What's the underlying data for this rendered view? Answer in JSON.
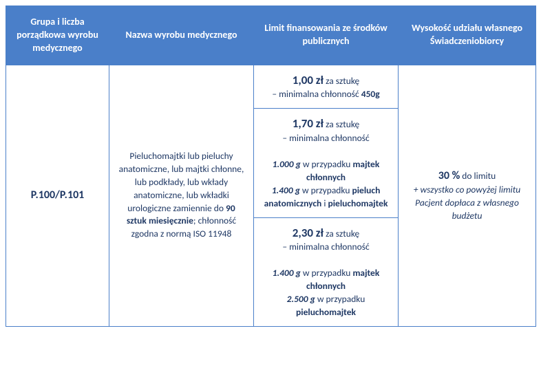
{
  "header": {
    "col1": "Grupa i liczba porządkowa wyrobu medycznego",
    "col2": "Nazwa wyrobu medycznego",
    "col3": "Limit finansowania ze środków publicznych",
    "col4": "Wysokość udziału własnego Świadczeniobiorcy"
  },
  "row": {
    "code": "P.100/P.101",
    "product": {
      "p1": "Pieluchomajtki lub pieluchy anatomiczne, lub majtki chłonne, lub podkłady, lub wkłady anatomiczne, lub wkładki urologiczne zamiennie do ",
      "bold1": "90 sztuk miesięcznie",
      "p2": "; chłonność zgodna z normą ISO 11948"
    },
    "limits": [
      {
        "price": "1,00 zł",
        "unit": " za sztukę",
        "line2": "– minimalna chłonność ",
        "bold_after": "450g"
      },
      {
        "price": "1,70 zł",
        "unit": " za sztukę",
        "line2": "– minimalna chłonność",
        "details": [
          {
            "val": "1.000 g",
            "txt": " w przypadku ",
            "bold": "majtek chłonnych"
          },
          {
            "val": "1.400 g",
            "txt": " w przypadku ",
            "bold": "pieluch anatomicznych",
            "tail": " i ",
            "bold2": "pieluchomajtek"
          }
        ]
      },
      {
        "price": "2,30 zł",
        "unit": " za sztukę",
        "line2": "– minimalna chłonność",
        "details": [
          {
            "val": "1.400 g",
            "txt": " w przypadku ",
            "bold": "majtek chłonnych"
          },
          {
            "val": "2.500 g",
            "txt": " w przypadku ",
            "bold": "pieluchomajtek"
          }
        ]
      }
    ],
    "share": {
      "pct": "30 %",
      "txt": " do limitu",
      "note": "+ wszystko co powyżej limitu Pacjent dopłaca z własnego budżetu"
    }
  }
}
